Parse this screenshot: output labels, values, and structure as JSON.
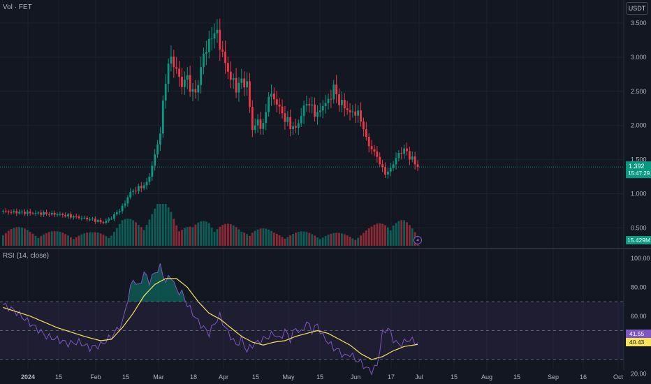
{
  "header": {
    "pane_label": "Vol · FET",
    "currency": "USDT"
  },
  "rsi": {
    "label": "RSI (14, close)"
  },
  "price_badge": {
    "price": "1.392",
    "countdown": "15:47:29",
    "color": "#089981"
  },
  "volume_badge": {
    "value": "15.429M",
    "color": "#089981"
  },
  "rsi_badges": {
    "rsi_value": "41.55",
    "rsi_color": "#7e57c2",
    "ma_value": "40.43",
    "ma_color": "#f7e35c"
  },
  "colors": {
    "up": "#089981",
    "down": "#f23645",
    "rsi_line": "#7e57c2",
    "rsi_ma": "#f7e35c",
    "background": "#131722"
  },
  "chart_data": {
    "type": "candlestick",
    "symbol": "FET",
    "quote": "USDT",
    "price_ticks": [
      "3.500",
      "3.000",
      "2.500",
      "2.000",
      "1.500",
      "1.000",
      "0.500"
    ],
    "rsi_ticks": [
      "100.00",
      "80.00",
      "60.00",
      "20.00"
    ],
    "x_ticks": [
      "2024",
      "15",
      "Feb",
      "15",
      "Mar",
      "18",
      "Apr",
      "15",
      "May",
      "15",
      "Jun",
      "17",
      "Jul",
      "15",
      "Aug",
      "15",
      "Sep",
      "16",
      "Oct"
    ],
    "last_price": 1.392,
    "rsi_bands": {
      "upper": 70,
      "middle": 50,
      "lower": 30
    },
    "close_anchors": [
      [
        0,
        0.74
      ],
      [
        10,
        0.72
      ],
      [
        20,
        0.7
      ],
      [
        27,
        0.66
      ],
      [
        33,
        0.62
      ],
      [
        37,
        0.58
      ],
      [
        40,
        0.65
      ],
      [
        44,
        0.8
      ],
      [
        47,
        1.02
      ],
      [
        50,
        1.08
      ],
      [
        53,
        1.15
      ],
      [
        55,
        1.4
      ],
      [
        58,
        1.9
      ],
      [
        60,
        2.7
      ],
      [
        62,
        3.0
      ],
      [
        64,
        2.8
      ],
      [
        66,
        2.6
      ],
      [
        68,
        2.7
      ],
      [
        70,
        2.45
      ],
      [
        72,
        2.6
      ],
      [
        74,
        3.05
      ],
      [
        76,
        3.2
      ],
      [
        78,
        3.4
      ],
      [
        80,
        3.2
      ],
      [
        82,
        2.9
      ],
      [
        84,
        2.7
      ],
      [
        86,
        2.55
      ],
      [
        88,
        2.65
      ],
      [
        90,
        2.6
      ],
      [
        92,
        1.95
      ],
      [
        94,
        2.05
      ],
      [
        96,
        1.98
      ],
      [
        98,
        2.45
      ],
      [
        100,
        2.4
      ],
      [
        102,
        2.25
      ],
      [
        104,
        2.1
      ],
      [
        106,
        2.0
      ],
      [
        108,
        1.95
      ],
      [
        110,
        2.15
      ],
      [
        112,
        2.35
      ],
      [
        114,
        2.25
      ],
      [
        116,
        2.15
      ],
      [
        118,
        2.3
      ],
      [
        120,
        2.35
      ],
      [
        122,
        2.55
      ],
      [
        124,
        2.35
      ],
      [
        126,
        2.28
      ],
      [
        128,
        2.18
      ],
      [
        130,
        2.2
      ],
      [
        132,
        2.1
      ],
      [
        134,
        1.8
      ],
      [
        136,
        1.65
      ],
      [
        138,
        1.55
      ],
      [
        140,
        1.35
      ],
      [
        142,
        1.3
      ],
      [
        144,
        1.45
      ],
      [
        146,
        1.58
      ],
      [
        148,
        1.65
      ],
      [
        150,
        1.55
      ],
      [
        152,
        1.45
      ],
      [
        153,
        1.392
      ]
    ],
    "volume_anchors": [
      [
        0,
        0.45
      ],
      [
        10,
        0.35
      ],
      [
        20,
        0.3
      ],
      [
        33,
        0.28
      ],
      [
        40,
        0.35
      ],
      [
        44,
        0.55
      ],
      [
        50,
        0.6
      ],
      [
        55,
        0.8
      ],
      [
        58,
        0.95
      ],
      [
        62,
        0.85
      ],
      [
        66,
        0.55
      ],
      [
        70,
        0.4
      ],
      [
        76,
        0.65
      ],
      [
        80,
        0.55
      ],
      [
        88,
        0.35
      ],
      [
        92,
        0.45
      ],
      [
        100,
        0.3
      ],
      [
        110,
        0.3
      ],
      [
        120,
        0.28
      ],
      [
        130,
        0.25
      ],
      [
        136,
        0.4
      ],
      [
        140,
        0.55
      ],
      [
        144,
        0.7
      ],
      [
        148,
        0.55
      ],
      [
        153,
        0.25
      ]
    ],
    "rsi_anchors": [
      [
        0,
        68
      ],
      [
        4,
        64
      ],
      [
        8,
        58
      ],
      [
        12,
        52
      ],
      [
        16,
        46
      ],
      [
        20,
        44
      ],
      [
        24,
        41
      ],
      [
        28,
        42
      ],
      [
        32,
        38
      ],
      [
        36,
        40
      ],
      [
        40,
        46
      ],
      [
        44,
        55
      ],
      [
        46,
        72
      ],
      [
        48,
        86
      ],
      [
        50,
        80
      ],
      [
        52,
        90
      ],
      [
        54,
        84
      ],
      [
        56,
        90
      ],
      [
        58,
        94
      ],
      [
        60,
        84
      ],
      [
        62,
        88
      ],
      [
        64,
        78
      ],
      [
        66,
        76
      ],
      [
        68,
        68
      ],
      [
        70,
        62
      ],
      [
        72,
        56
      ],
      [
        74,
        52
      ],
      [
        76,
        48
      ],
      [
        78,
        55
      ],
      [
        80,
        60
      ],
      [
        82,
        52
      ],
      [
        84,
        46
      ],
      [
        86,
        40
      ],
      [
        88,
        44
      ],
      [
        90,
        36
      ],
      [
        92,
        40
      ],
      [
        94,
        42
      ],
      [
        96,
        44
      ],
      [
        98,
        46
      ],
      [
        100,
        48
      ],
      [
        102,
        44
      ],
      [
        104,
        50
      ],
      [
        106,
        44
      ],
      [
        108,
        52
      ],
      [
        110,
        48
      ],
      [
        112,
        56
      ],
      [
        114,
        50
      ],
      [
        116,
        54
      ],
      [
        118,
        46
      ],
      [
        120,
        42
      ],
      [
        122,
        38
      ],
      [
        124,
        36
      ],
      [
        126,
        32
      ],
      [
        128,
        34
      ],
      [
        130,
        30
      ],
      [
        132,
        28
      ],
      [
        134,
        24
      ],
      [
        136,
        22
      ],
      [
        138,
        26
      ],
      [
        140,
        48
      ],
      [
        142,
        52
      ],
      [
        144,
        44
      ],
      [
        146,
        40
      ],
      [
        148,
        42
      ],
      [
        150,
        44
      ],
      [
        152,
        42
      ],
      [
        153,
        41.55
      ]
    ],
    "ma_anchors": [
      [
        0,
        66
      ],
      [
        10,
        60
      ],
      [
        20,
        52
      ],
      [
        30,
        46
      ],
      [
        36,
        43
      ],
      [
        40,
        44
      ],
      [
        44,
        52
      ],
      [
        48,
        62
      ],
      [
        52,
        74
      ],
      [
        56,
        82
      ],
      [
        60,
        86
      ],
      [
        64,
        86
      ],
      [
        68,
        80
      ],
      [
        72,
        70
      ],
      [
        76,
        62
      ],
      [
        80,
        58
      ],
      [
        84,
        52
      ],
      [
        88,
        46
      ],
      [
        92,
        42
      ],
      [
        96,
        40
      ],
      [
        100,
        42
      ],
      [
        104,
        43
      ],
      [
        108,
        46
      ],
      [
        112,
        48
      ],
      [
        116,
        50
      ],
      [
        120,
        48
      ],
      [
        124,
        44
      ],
      [
        128,
        40
      ],
      [
        132,
        34
      ],
      [
        136,
        30
      ],
      [
        140,
        32
      ],
      [
        144,
        36
      ],
      [
        148,
        39
      ],
      [
        153,
        40.43
      ]
    ]
  }
}
